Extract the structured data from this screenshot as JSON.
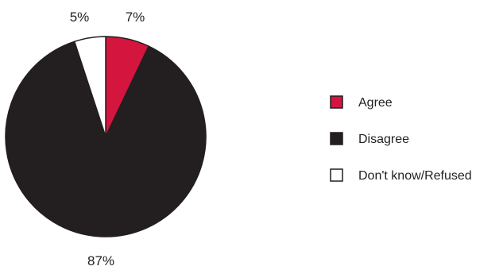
{
  "chart_data": {
    "type": "pie",
    "title": "",
    "slices": [
      {
        "label": "Agree",
        "value": 7,
        "display": "7%",
        "color": "#d4163f"
      },
      {
        "label": "Disagree",
        "value": 87,
        "display": "87%",
        "color": "#231f20"
      },
      {
        "label": "Don't know/Refused",
        "value": 5,
        "display": "5%",
        "color": "#ffffff"
      }
    ],
    "start_angle_deg": 0,
    "direction": "clockwise",
    "legend": {
      "placement": "right",
      "items": [
        "Agree",
        "Disagree",
        "Don't know/Refused"
      ]
    },
    "slice_outline_color": "#231f20"
  }
}
